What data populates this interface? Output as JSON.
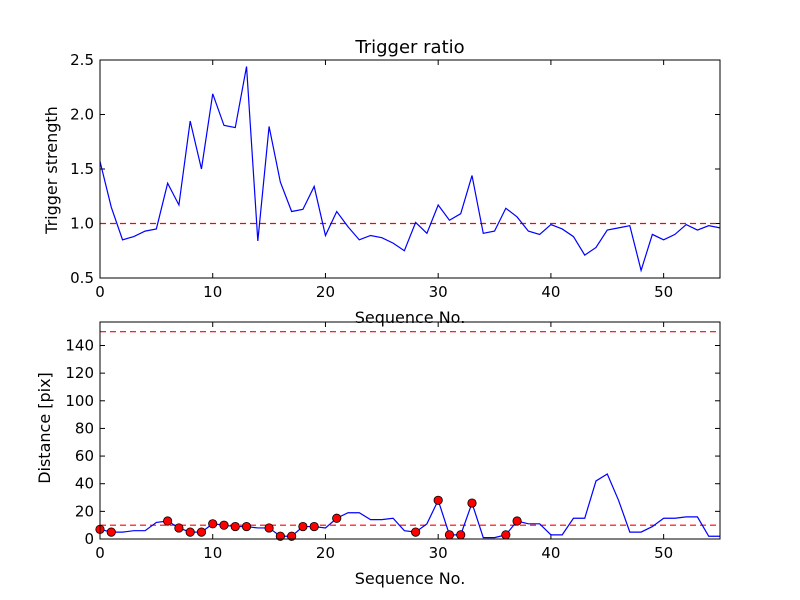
{
  "colors": {
    "line": "#0000ff",
    "threshold": "#ff0000",
    "marker_fill": "#ff0000",
    "marker_edge": "#000000",
    "axes": "#000000"
  },
  "chart_data": [
    {
      "type": "line",
      "title": "Trigger ratio",
      "xlabel": "Sequence No.",
      "ylabel": "Trigger strength",
      "xlim": [
        0,
        55
      ],
      "ylim": [
        0.5,
        2.5
      ],
      "xticks": [
        0,
        10,
        20,
        30,
        40,
        50
      ],
      "xtick_labels": [
        "0",
        "10",
        "20",
        "30",
        "40",
        "50"
      ],
      "yticks": [
        0.5,
        1.0,
        1.5,
        2.0,
        2.5
      ],
      "ytick_labels": [
        "0.5",
        "1.0",
        "1.5",
        "2.0",
        "2.5"
      ],
      "grid": false,
      "threshold": 1.0,
      "x": [
        0,
        1,
        2,
        3,
        4,
        5,
        6,
        7,
        8,
        9,
        10,
        11,
        12,
        13,
        14,
        15,
        16,
        17,
        18,
        19,
        20,
        21,
        22,
        23,
        24,
        25,
        26,
        27,
        28,
        29,
        30,
        31,
        32,
        33,
        34,
        35,
        36,
        37,
        38,
        39,
        40,
        41,
        42,
        43,
        44,
        45,
        46,
        47,
        48,
        49,
        50,
        51,
        52,
        53,
        54,
        55
      ],
      "y": [
        1.57,
        1.15,
        0.85,
        0.88,
        0.93,
        0.95,
        1.37,
        1.17,
        1.94,
        1.5,
        2.19,
        1.9,
        1.88,
        2.44,
        0.84,
        1.89,
        1.38,
        1.11,
        1.13,
        1.34,
        0.89,
        1.11,
        0.97,
        0.85,
        0.89,
        0.87,
        0.82,
        0.75,
        1.01,
        0.91,
        1.17,
        1.03,
        1.09,
        1.44,
        0.91,
        0.93,
        1.14,
        1.06,
        0.93,
        0.9,
        0.99,
        0.95,
        0.88,
        0.71,
        0.78,
        0.94,
        0.96,
        0.98,
        0.57,
        0.9,
        0.85,
        0.9,
        0.99,
        0.94,
        0.98,
        0.96
      ]
    },
    {
      "type": "line",
      "title": "",
      "xlabel": "Sequence No.",
      "ylabel": "Distance [pix]",
      "xlim": [
        0,
        55
      ],
      "ylim": [
        0,
        157
      ],
      "xticks": [
        0,
        10,
        20,
        30,
        40,
        50
      ],
      "xtick_labels": [
        "0",
        "10",
        "20",
        "30",
        "40",
        "50"
      ],
      "yticks": [
        0,
        20,
        40,
        60,
        80,
        100,
        120,
        140
      ],
      "ytick_labels": [
        "0",
        "20",
        "40",
        "60",
        "80",
        "100",
        "120",
        "140"
      ],
      "grid": false,
      "thresholds": [
        10,
        150
      ],
      "x": [
        0,
        1,
        2,
        3,
        4,
        5,
        6,
        7,
        8,
        9,
        10,
        11,
        12,
        13,
        14,
        15,
        16,
        17,
        18,
        19,
        20,
        21,
        22,
        23,
        24,
        25,
        26,
        27,
        28,
        29,
        30,
        31,
        32,
        33,
        34,
        35,
        36,
        37,
        38,
        39,
        40,
        41,
        42,
        43,
        44,
        45,
        46,
        47,
        48,
        49,
        50,
        51,
        52,
        53,
        54,
        55
      ],
      "y": [
        7,
        5,
        5,
        6,
        6,
        12,
        13,
        8,
        5,
        5,
        11,
        10,
        9,
        9,
        8,
        8,
        2,
        2,
        9,
        9,
        8,
        15,
        19,
        19,
        14,
        14,
        15,
        6,
        5,
        11,
        28,
        3,
        3,
        26,
        1,
        1,
        3,
        13,
        11,
        11,
        3,
        3,
        15,
        15,
        42,
        47,
        28,
        5,
        5,
        9,
        15,
        15,
        16,
        16,
        2,
        2
      ],
      "markers": {
        "x": [
          0,
          1,
          6,
          7,
          8,
          9,
          10,
          11,
          12,
          13,
          15,
          16,
          17,
          18,
          19,
          21,
          28,
          30,
          31,
          32,
          33,
          36,
          37
        ],
        "y": [
          7,
          5,
          13,
          8,
          5,
          5,
          11,
          10,
          9,
          9,
          8,
          2,
          2,
          9,
          9,
          15,
          5,
          28,
          3,
          3,
          26,
          3,
          13
        ]
      }
    }
  ]
}
